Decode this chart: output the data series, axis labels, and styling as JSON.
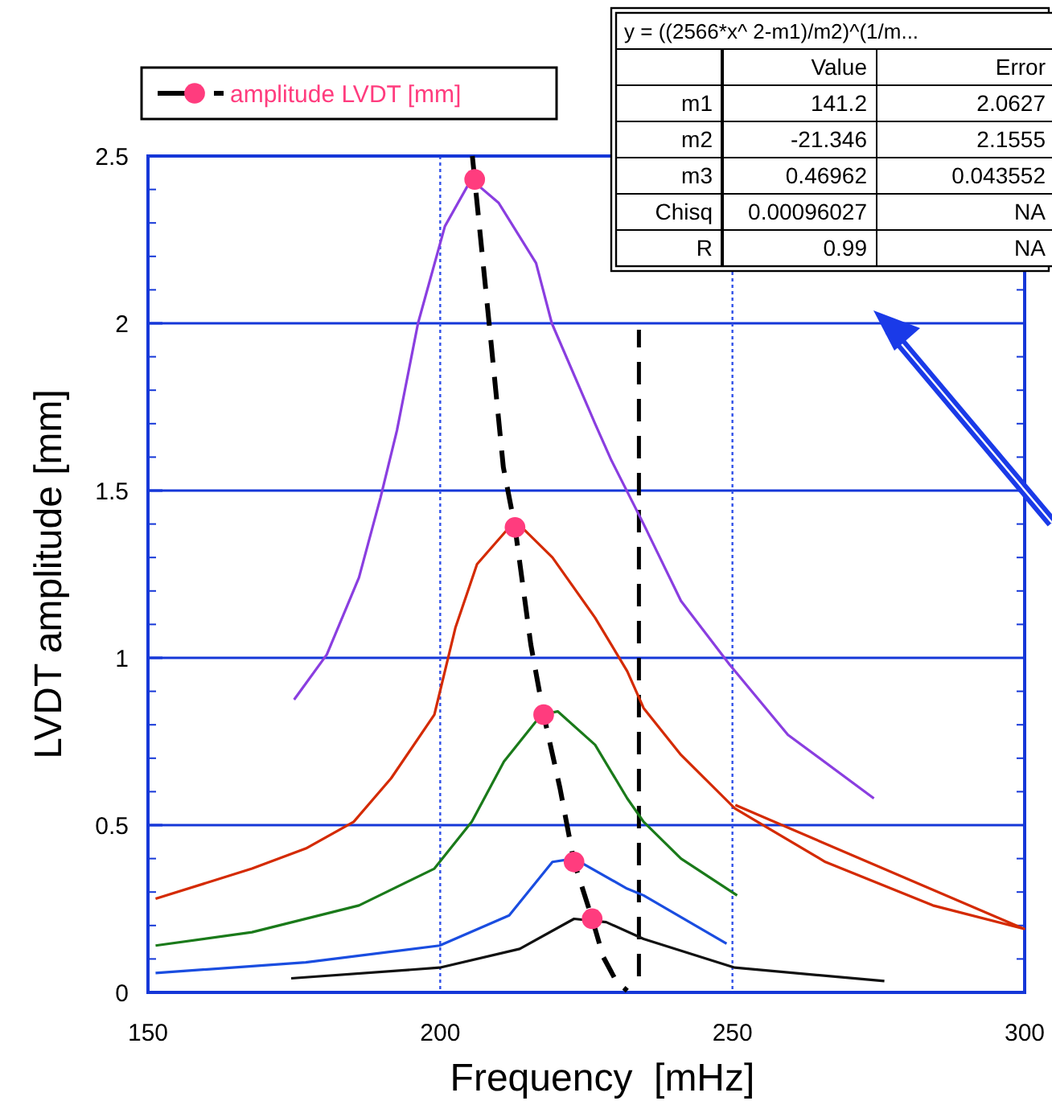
{
  "chart_data": {
    "type": "line",
    "xlabel": "Frequency  [mHz]",
    "ylabel": "LVDT amplitude [mm]",
    "xlim": [
      150,
      300
    ],
    "ylim": [
      0,
      2.5
    ],
    "xticks": [
      150,
      200,
      250,
      300
    ],
    "yticks": [
      0,
      0.5,
      1,
      1.5,
      2,
      2.5
    ],
    "grid": true,
    "legend": "top left",
    "series": [
      {
        "color": "#8a3ee0",
        "x": [
          175,
          180.6,
          186.1,
          189.8,
          192.6,
          196.2,
          200.8,
          205.3,
          210,
          216.4,
          219.1,
          226.5,
          229.3,
          234.8,
          241.2,
          249.5,
          259.5,
          274.2
        ],
        "values": [
          0.875,
          1.01,
          1.24,
          1.48,
          1.68,
          2.0,
          2.29,
          2.43,
          2.36,
          2.18,
          2.0,
          1.7,
          1.59,
          1.4,
          1.17,
          0.98,
          0.77,
          0.58
        ]
      },
      {
        "color": "#d42a00",
        "x": [
          151.3,
          167.8,
          177,
          185.2,
          191.6,
          199,
          202.6,
          206.3,
          212.8,
          219.2,
          226.5,
          232,
          234.8,
          241.2,
          250.4,
          265.9,
          284.3,
          299.9,
          250.5
        ],
        "values": [
          0.28,
          0.37,
          0.43,
          0.51,
          0.64,
          0.83,
          1.09,
          1.28,
          1.41,
          1.3,
          1.12,
          0.96,
          0.85,
          0.71,
          0.55,
          0.39,
          0.26,
          0.19,
          0.56
        ]
      },
      {
        "color": "#1a7a1a",
        "x": [
          151.3,
          167.8,
          186.1,
          199,
          205.4,
          210.9,
          217.3,
          220.1,
          226.5,
          232,
          234.8,
          241.2,
          250.8
        ],
        "values": [
          0.14,
          0.18,
          0.26,
          0.37,
          0.51,
          0.69,
          0.83,
          0.84,
          0.74,
          0.58,
          0.51,
          0.4,
          0.29
        ]
      },
      {
        "color": "#1a4de0",
        "x": [
          151.3,
          177,
          199.9,
          211.8,
          219.2,
          222.9,
          232,
          234.8,
          249
        ],
        "values": [
          0.058,
          0.09,
          0.14,
          0.23,
          0.39,
          0.4,
          0.31,
          0.29,
          0.146
        ]
      },
      {
        "color": "#111111",
        "x": [
          174.5,
          199.9,
          213.6,
          222.9,
          228.4,
          234.8,
          250.4,
          276
        ],
        "values": [
          0.042,
          0.074,
          0.13,
          0.22,
          0.21,
          0.16,
          0.074,
          0.034
        ]
      },
      {
        "color": "#000000",
        "line_style": "dashed",
        "x": [
          205.5,
          205.9,
          208.6,
          210.8,
          212.8,
          215.5,
          217.7,
          220.5,
          222.9,
          226,
          227.9,
          230.1,
          232
        ],
        "values": [
          2.5,
          2.43,
          1.96,
          1.57,
          1.39,
          1.04,
          0.83,
          0.61,
          0.39,
          0.22,
          0.106,
          0.034,
          0.005
        ]
      },
      {
        "type": "scatter",
        "name": "amplitude LVDT [mm]",
        "color": "#ff3c7e",
        "marker": "circle",
        "x": [
          205.9,
          212.8,
          217.7,
          222.9,
          226
        ],
        "values": [
          2.43,
          1.39,
          0.83,
          0.39,
          0.22
        ]
      }
    ],
    "ref_lines": [
      {
        "axis": "x",
        "value": 234,
        "color": "#000000",
        "line_style": "dashed"
      }
    ],
    "annotations": [
      "y = ((2566*x^ 2-m1)/m2)^(1/m...",
      "Value",
      "Error",
      "m1",
      "141.2",
      "2.0627",
      "m2",
      "-21.346",
      "2.1555",
      "m3",
      "0.46962",
      "0.043552",
      "Chisq",
      "0.00096027",
      "NA",
      "R",
      "0.99",
      "NA"
    ]
  }
}
